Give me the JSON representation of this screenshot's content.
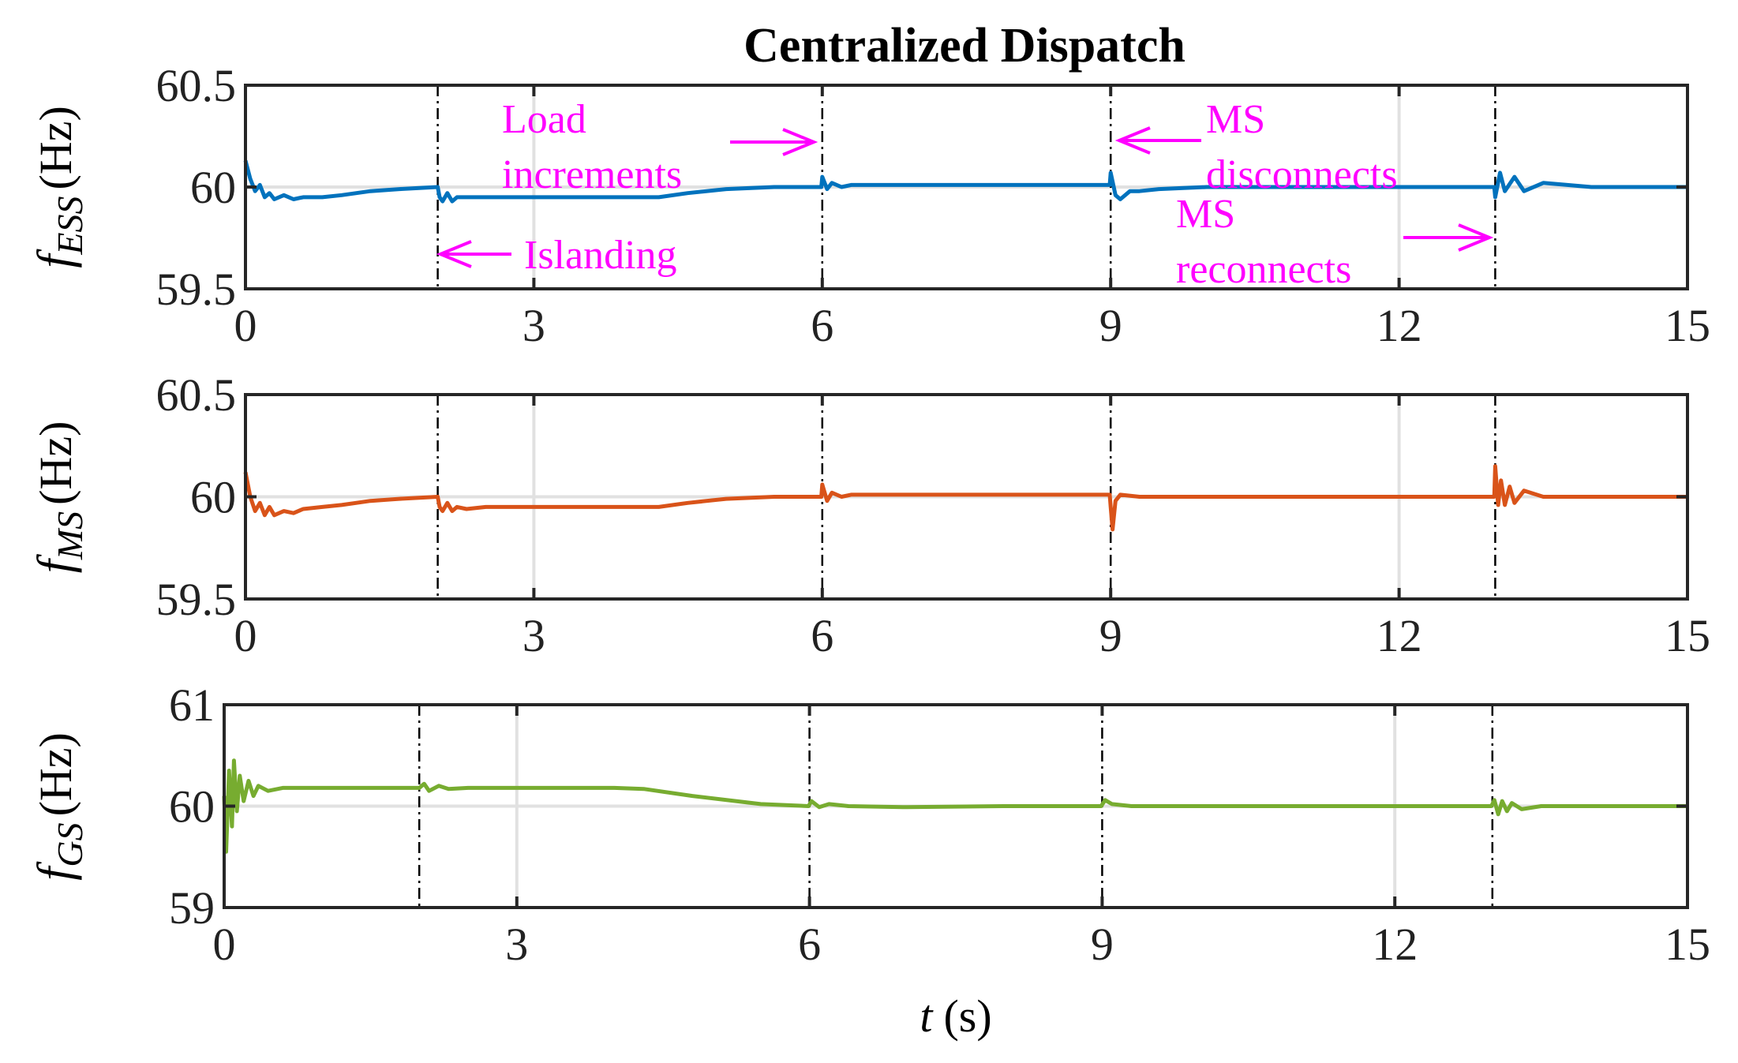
{
  "chart_data": [
    {
      "type": "line",
      "title": "Centralized Dispatch",
      "ylabel": {
        "symbol": "f",
        "subscript": "ESS",
        "unit": "(Hz)"
      },
      "xlabel": "",
      "xlim": [
        0,
        15
      ],
      "ylim": [
        59.5,
        60.5
      ],
      "xticks": [
        0,
        3,
        6,
        9,
        12,
        15
      ],
      "yticks": [
        59.5,
        60,
        60.5
      ],
      "ytick_labels": [
        "59.5",
        "60",
        "60.5"
      ],
      "grid_y": [
        60
      ],
      "grid_x": [
        3,
        12
      ],
      "event_lines": [
        2,
        6,
        9,
        13
      ],
      "color": "#0072BD",
      "series": [
        {
          "name": "f_ESS",
          "x": [
            0,
            0.05,
            0.1,
            0.15,
            0.2,
            0.25,
            0.3,
            0.4,
            0.5,
            0.6,
            0.8,
            1.0,
            1.3,
            1.6,
            2.0,
            2.02,
            2.05,
            2.1,
            2.15,
            2.2,
            2.3,
            2.5,
            3,
            3.5,
            4,
            4.3,
            4.6,
            5,
            5.5,
            5.99,
            6.0,
            6.05,
            6.1,
            6.2,
            6.3,
            7,
            8,
            8.99,
            9.0,
            9.05,
            9.1,
            9.2,
            9.3,
            9.5,
            10,
            11,
            12,
            12.99,
            13.0,
            13.05,
            13.1,
            13.2,
            13.3,
            13.5,
            14,
            15
          ],
          "y": [
            60.13,
            60.04,
            59.98,
            60.01,
            59.95,
            59.97,
            59.94,
            59.96,
            59.94,
            59.95,
            59.95,
            59.96,
            59.98,
            59.99,
            60.0,
            59.95,
            59.93,
            59.97,
            59.93,
            59.95,
            59.95,
            59.95,
            59.95,
            59.95,
            59.95,
            59.95,
            59.97,
            59.99,
            60.0,
            60.0,
            60.05,
            59.99,
            60.02,
            60.0,
            60.01,
            60.01,
            60.01,
            60.01,
            60.07,
            59.96,
            59.94,
            59.98,
            59.98,
            59.99,
            60.0,
            60.0,
            60.0,
            60.0,
            59.95,
            60.07,
            59.98,
            60.05,
            59.98,
            60.02,
            60.0,
            60.0
          ]
        }
      ],
      "annotations": [
        {
          "lines": [
            "Load",
            "increments"
          ],
          "arrow_to_x": 6
        },
        {
          "lines": [
            "Islanding"
          ],
          "arrow_to_x": 2
        },
        {
          "lines": [
            "MS",
            "disconnects"
          ],
          "arrow_to_x": 9
        },
        {
          "lines": [
            "MS",
            "reconnects"
          ],
          "arrow_to_x": 13
        }
      ]
    },
    {
      "type": "line",
      "ylabel": {
        "symbol": "f",
        "subscript": "MS",
        "unit": "(Hz)"
      },
      "xlabel": "",
      "xlim": [
        0,
        15
      ],
      "ylim": [
        59.5,
        60.5
      ],
      "xticks": [
        0,
        3,
        6,
        9,
        12,
        15
      ],
      "yticks": [
        59.5,
        60,
        60.5
      ],
      "ytick_labels": [
        "59.5",
        "60",
        "60.5"
      ],
      "grid_y": [
        60
      ],
      "grid_x": [
        3,
        12
      ],
      "event_lines": [
        2,
        6,
        9,
        13
      ],
      "color": "#D95319",
      "series": [
        {
          "name": "f_MS",
          "x": [
            0,
            0.05,
            0.1,
            0.15,
            0.2,
            0.25,
            0.3,
            0.4,
            0.5,
            0.6,
            0.8,
            1.0,
            1.3,
            1.6,
            2.0,
            2.02,
            2.05,
            2.1,
            2.15,
            2.2,
            2.3,
            2.5,
            3,
            3.5,
            4,
            4.3,
            4.6,
            5,
            5.5,
            5.99,
            6.0,
            6.05,
            6.1,
            6.2,
            6.3,
            7,
            8,
            8.99,
            9.0,
            9.02,
            9.05,
            9.1,
            9.3,
            10,
            11,
            12,
            12.99,
            13.0,
            13.03,
            13.06,
            13.1,
            13.15,
            13.2,
            13.3,
            13.5,
            14,
            15
          ],
          "y": [
            60.12,
            60.0,
            59.93,
            59.97,
            59.91,
            59.95,
            59.91,
            59.93,
            59.92,
            59.94,
            59.95,
            59.96,
            59.98,
            59.99,
            60.0,
            59.95,
            59.93,
            59.97,
            59.93,
            59.95,
            59.94,
            59.95,
            59.95,
            59.95,
            59.95,
            59.95,
            59.97,
            59.99,
            60.0,
            60.0,
            60.06,
            59.98,
            60.02,
            60.0,
            60.01,
            60.01,
            60.01,
            60.01,
            59.95,
            59.84,
            59.98,
            60.01,
            60.0,
            60.0,
            60.0,
            60.0,
            60.0,
            60.15,
            59.96,
            60.08,
            59.96,
            60.05,
            59.97,
            60.03,
            60.0,
            60.0,
            60.0
          ]
        }
      ]
    },
    {
      "type": "line",
      "ylabel": {
        "symbol": "f",
        "subscript": "GS",
        "unit": "(Hz)"
      },
      "xlabel": {
        "symbol": "t",
        "unit": "(s)"
      },
      "xlim": [
        0,
        15
      ],
      "ylim": [
        59,
        61
      ],
      "xticks": [
        0,
        3,
        6,
        9,
        12,
        15
      ],
      "yticks": [
        59,
        60,
        61
      ],
      "ytick_labels": [
        "59",
        "60",
        "61"
      ],
      "grid_y": [
        60
      ],
      "grid_x": [
        3,
        12
      ],
      "event_lines": [
        2,
        6,
        9,
        13
      ],
      "color": "#77AC30",
      "series": [
        {
          "name": "f_GS",
          "x": [
            0,
            0.02,
            0.05,
            0.08,
            0.1,
            0.13,
            0.16,
            0.2,
            0.25,
            0.3,
            0.35,
            0.45,
            0.6,
            1.0,
            2.0,
            2.05,
            2.1,
            2.2,
            2.3,
            2.5,
            3,
            4,
            4.3,
            4.8,
            5.5,
            5.99,
            6.02,
            6.1,
            6.2,
            6.4,
            7,
            8,
            8.99,
            9.03,
            9.1,
            9.3,
            10,
            11,
            12,
            12.99,
            13.02,
            13.06,
            13.1,
            13.15,
            13.2,
            13.3,
            13.5,
            14,
            15
          ],
          "y": [
            60.1,
            59.55,
            60.35,
            59.8,
            60.45,
            59.95,
            60.3,
            60.05,
            60.25,
            60.1,
            60.2,
            60.15,
            60.18,
            60.18,
            60.18,
            60.22,
            60.15,
            60.2,
            60.17,
            60.18,
            60.18,
            60.18,
            60.17,
            60.1,
            60.02,
            60.0,
            60.05,
            59.99,
            60.02,
            60.0,
            59.99,
            60.0,
            60.0,
            60.06,
            60.02,
            60.0,
            60.0,
            60.0,
            60.0,
            60.0,
            60.06,
            59.92,
            60.05,
            59.95,
            60.03,
            59.97,
            60.0,
            60.0,
            60.0
          ]
        }
      ]
    }
  ]
}
